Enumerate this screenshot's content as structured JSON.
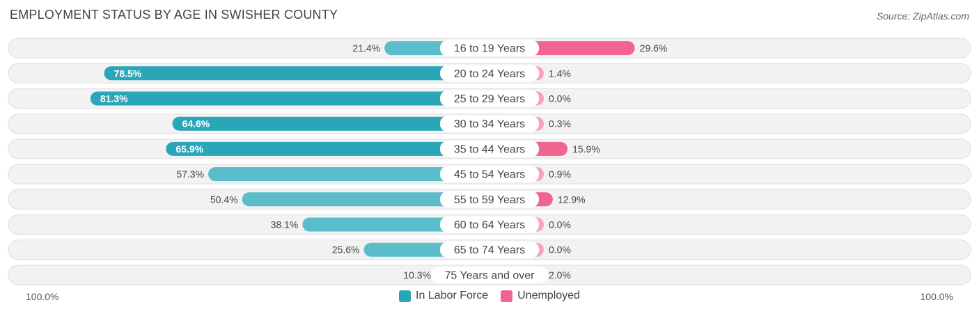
{
  "chart_data": {
    "type": "bar",
    "orientation": "horizontal-diverging",
    "title": "EMPLOYMENT STATUS BY AGE IN SWISHER COUNTY",
    "source": "Source: ZipAtlas.com",
    "categories": [
      "16 to 19 Years",
      "20 to 24 Years",
      "25 to 29 Years",
      "30 to 34 Years",
      "35 to 44 Years",
      "45 to 54 Years",
      "55 to 59 Years",
      "60 to 64 Years",
      "65 to 74 Years",
      "75 Years and over"
    ],
    "series": [
      {
        "name": "In Labor Force",
        "values": [
          21.4,
          78.5,
          81.3,
          64.6,
          65.9,
          57.3,
          50.4,
          38.1,
          25.6,
          10.3
        ],
        "labels": [
          "21.4%",
          "78.5%",
          "81.3%",
          "64.6%",
          "65.9%",
          "57.3%",
          "50.4%",
          "38.1%",
          "25.6%",
          "10.3%"
        ],
        "color": "#5bbccb",
        "color_strong": "#2ba5b8"
      },
      {
        "name": "Unemployed",
        "values": [
          29.6,
          1.4,
          0.0,
          0.3,
          15.9,
          0.9,
          12.9,
          0.0,
          0.0,
          2.0
        ],
        "labels": [
          "29.6%",
          "1.4%",
          "0.0%",
          "0.3%",
          "15.9%",
          "0.9%",
          "12.9%",
          "0.0%",
          "0.0%",
          "2.0%"
        ],
        "color": "#f7a3bd",
        "color_strong": "#f0648f"
      }
    ],
    "xlim": [
      -100,
      100
    ],
    "axis_left_label": "100.0%",
    "axis_right_label": "100.0%",
    "legend_position": "bottom-center"
  }
}
